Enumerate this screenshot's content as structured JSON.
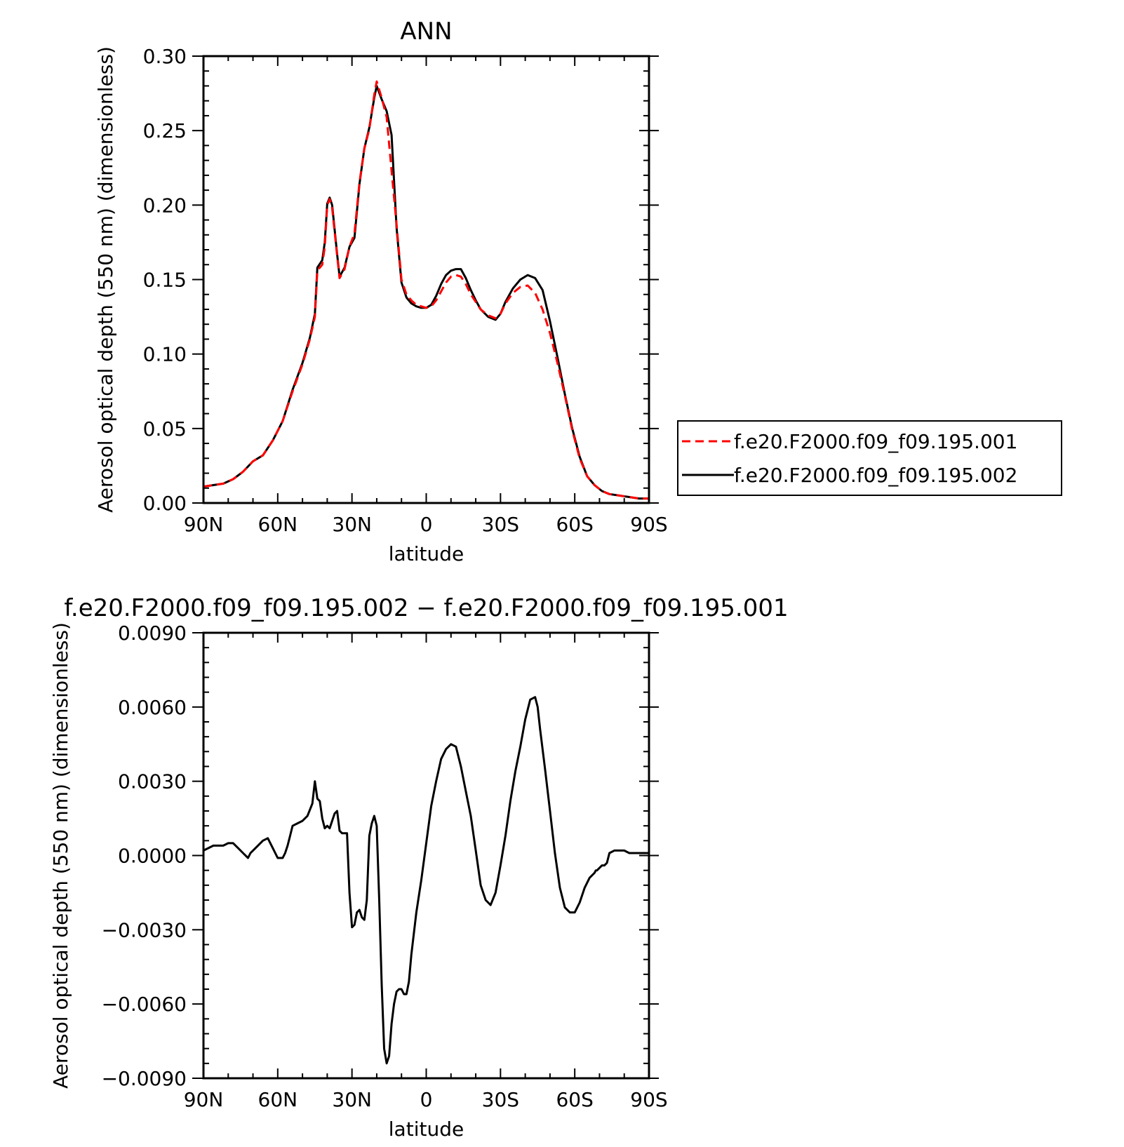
{
  "chart_data": [
    {
      "type": "line",
      "title": "ANN",
      "xlabel": "latitude",
      "ylabel": "Aerosol optical depth (550 nm) (dimensionless)",
      "xlim": [
        90,
        -90
      ],
      "ylim": [
        0.0,
        0.3
      ],
      "xticks": [
        90,
        60,
        30,
        0,
        -30,
        -60,
        -90
      ],
      "xtick_labels": [
        "90N",
        "60N",
        "30N",
        "0",
        "30S",
        "60S",
        "90S"
      ],
      "yticks": [
        0.0,
        0.05,
        0.1,
        0.15,
        0.2,
        0.25,
        0.3
      ],
      "ytick_labels": [
        "0.00",
        "0.05",
        "0.10",
        "0.15",
        "0.20",
        "0.25",
        "0.30"
      ],
      "grid": false,
      "legend_position": "right",
      "series": [
        {
          "name": "f.e20.F2000.f09_f09.195.001",
          "color": "#ff0000",
          "dash": "dashed",
          "x": [
            90,
            86,
            82,
            78,
            74,
            70,
            66,
            62,
            58,
            54,
            50,
            47,
            45,
            44,
            42,
            41,
            40,
            39,
            38,
            36,
            35,
            33,
            31,
            29,
            27,
            25,
            23,
            21,
            20,
            18,
            16,
            14,
            12,
            10,
            8,
            6,
            4,
            2,
            0,
            -2,
            -4,
            -6,
            -8,
            -10,
            -12,
            -14,
            -16,
            -18,
            -20,
            -22,
            -25,
            -28,
            -30,
            -32,
            -35,
            -38,
            -41,
            -44,
            -47,
            -50,
            -53,
            -56,
            -59,
            -62,
            -65,
            -68,
            -71,
            -74,
            -78,
            -82,
            -86,
            -90
          ],
          "y": [
            0.011,
            0.012,
            0.013,
            0.016,
            0.021,
            0.028,
            0.032,
            0.042,
            0.055,
            0.075,
            0.093,
            0.11,
            0.125,
            0.156,
            0.16,
            0.172,
            0.2,
            0.204,
            0.198,
            0.166,
            0.151,
            0.157,
            0.172,
            0.181,
            0.215,
            0.238,
            0.251,
            0.274,
            0.283,
            0.272,
            0.259,
            0.223,
            0.187,
            0.15,
            0.14,
            0.136,
            0.133,
            0.132,
            0.131,
            0.132,
            0.136,
            0.142,
            0.148,
            0.152,
            0.153,
            0.152,
            0.147,
            0.14,
            0.135,
            0.13,
            0.126,
            0.124,
            0.127,
            0.134,
            0.141,
            0.145,
            0.146,
            0.141,
            0.13,
            0.114,
            0.094,
            0.072,
            0.049,
            0.03,
            0.018,
            0.012,
            0.008,
            0.006,
            0.005,
            0.004,
            0.003,
            0.003
          ]
        },
        {
          "name": "f.e20.F2000.f09_f09.195.002",
          "color": "#000000",
          "dash": "solid",
          "x": [
            90,
            86,
            82,
            78,
            74,
            70,
            66,
            62,
            58,
            54,
            50,
            47,
            45,
            44,
            42,
            41,
            40,
            39,
            38,
            36,
            35,
            33,
            31,
            29,
            27,
            25,
            23,
            21,
            20,
            18,
            16,
            14,
            12,
            10,
            8,
            6,
            4,
            2,
            0,
            -2,
            -4,
            -6,
            -8,
            -10,
            -12,
            -14,
            -16,
            -18,
            -20,
            -22,
            -25,
            -28,
            -30,
            -32,
            -35,
            -38,
            -41,
            -44,
            -47,
            -50,
            -53,
            -56,
            -59,
            -62,
            -65,
            -68,
            -71,
            -74,
            -78,
            -82,
            -86,
            -90
          ],
          "y": [
            0.011,
            0.012,
            0.013,
            0.016,
            0.021,
            0.028,
            0.032,
            0.042,
            0.055,
            0.076,
            0.094,
            0.111,
            0.127,
            0.158,
            0.163,
            0.175,
            0.201,
            0.205,
            0.2,
            0.167,
            0.152,
            0.158,
            0.172,
            0.178,
            0.214,
            0.238,
            0.252,
            0.272,
            0.28,
            0.271,
            0.263,
            0.247,
            0.185,
            0.148,
            0.138,
            0.134,
            0.132,
            0.131,
            0.131,
            0.133,
            0.139,
            0.147,
            0.153,
            0.156,
            0.157,
            0.157,
            0.151,
            0.143,
            0.136,
            0.13,
            0.125,
            0.123,
            0.127,
            0.135,
            0.144,
            0.15,
            0.153,
            0.151,
            0.143,
            0.122,
            0.098,
            0.073,
            0.05,
            0.031,
            0.018,
            0.012,
            0.008,
            0.006,
            0.005,
            0.004,
            0.003,
            0.003
          ]
        }
      ]
    },
    {
      "type": "line",
      "title": "f.e20.F2000.f09_f09.195.002 − f.e20.F2000.f09_f09.195.001",
      "xlabel": "latitude",
      "ylabel": "Aerosol optical depth (550 nm) (dimensionless)",
      "xlim": [
        90,
        -90
      ],
      "ylim": [
        -0.009,
        0.009
      ],
      "xticks": [
        90,
        60,
        30,
        0,
        -30,
        -60,
        -90
      ],
      "xtick_labels": [
        "90N",
        "60N",
        "30N",
        "0",
        "30S",
        "60S",
        "90S"
      ],
      "yticks": [
        -0.009,
        -0.006,
        -0.003,
        0.0,
        0.003,
        0.006,
        0.009
      ],
      "ytick_labels": [
        "−0.0090",
        "−0.0060",
        "−0.0030",
        "0.0000",
        "0.0030",
        "0.0060",
        "0.0090"
      ],
      "grid": false,
      "series": [
        {
          "color": "#000000",
          "dash": "solid",
          "x": [
            90,
            88,
            86,
            84,
            82,
            80,
            78,
            76,
            74,
            72,
            71,
            70,
            69,
            68,
            66,
            64,
            62,
            60,
            58,
            57,
            56,
            55,
            54,
            52,
            50,
            48,
            46,
            45,
            44,
            43,
            42,
            41,
            40,
            39,
            38,
            37,
            36,
            35,
            34,
            32,
            31,
            30,
            29,
            28,
            27,
            26,
            25,
            24,
            23,
            22,
            21,
            20,
            19,
            18,
            17,
            16,
            15,
            14,
            13,
            12,
            11,
            10,
            9,
            8,
            7,
            6,
            4,
            2,
            0,
            -2,
            -4,
            -6,
            -8,
            -10,
            -12,
            -14,
            -16,
            -18,
            -20,
            -22,
            -24,
            -26,
            -28,
            -30,
            -32,
            -34,
            -36,
            -38,
            -40,
            -42,
            -44,
            -45,
            -46,
            -48,
            -50,
            -52,
            -54,
            -56,
            -58,
            -60,
            -62,
            -64,
            -66,
            -68,
            -68.5,
            -69,
            -71,
            -72,
            -73,
            -74,
            -76,
            -78,
            -80,
            -82,
            -84,
            -86,
            -88,
            -90
          ],
          "y": [
            0.0002,
            0.0003,
            0.0004,
            0.0004,
            0.0004,
            0.0005,
            0.0005,
            0.0003,
            0.0001,
            -0.0001,
            0.0001,
            0.0002,
            0.0003,
            0.0004,
            0.0006,
            0.0007,
            0.0003,
            -0.0001,
            -0.0001,
            0.0001,
            0.0004,
            0.0008,
            0.0012,
            0.0013,
            0.0014,
            0.0016,
            0.0021,
            0.003,
            0.0023,
            0.0022,
            0.0015,
            0.0011,
            0.0012,
            0.0011,
            0.0014,
            0.0017,
            0.0018,
            0.001,
            0.0009,
            0.0009,
            -0.0015,
            -0.0029,
            -0.0028,
            -0.0023,
            -0.0022,
            -0.0025,
            -0.0026,
            -0.0018,
            0.0008,
            0.0013,
            0.0016,
            0.0012,
            -0.0018,
            -0.0052,
            -0.0078,
            -0.0084,
            -0.0081,
            -0.0068,
            -0.006,
            -0.0055,
            -0.0054,
            -0.0054,
            -0.0056,
            -0.0056,
            -0.0051,
            -0.004,
            -0.0023,
            -0.001,
            0.0005,
            0.002,
            0.003,
            0.0039,
            0.0043,
            0.0045,
            0.0044,
            0.0036,
            0.0026,
            0.0016,
            0.0002,
            -0.0012,
            -0.0018,
            -0.002,
            -0.0015,
            -0.0004,
            0.0008,
            0.0022,
            0.0034,
            0.0044,
            0.0055,
            0.0063,
            0.0064,
            0.006,
            0.0051,
            0.0035,
            0.0018,
            0.0001,
            -0.0013,
            -0.0021,
            -0.0023,
            -0.0023,
            -0.0019,
            -0.0013,
            -0.0009,
            -0.0007,
            -0.0006,
            -0.0006,
            -0.0004,
            -0.0004,
            -0.0003,
            0.0001,
            0.0002,
            0.0002,
            0.0002,
            0.0001,
            0.0001,
            0.0001,
            0.0001,
            0.0001
          ]
        }
      ]
    }
  ]
}
